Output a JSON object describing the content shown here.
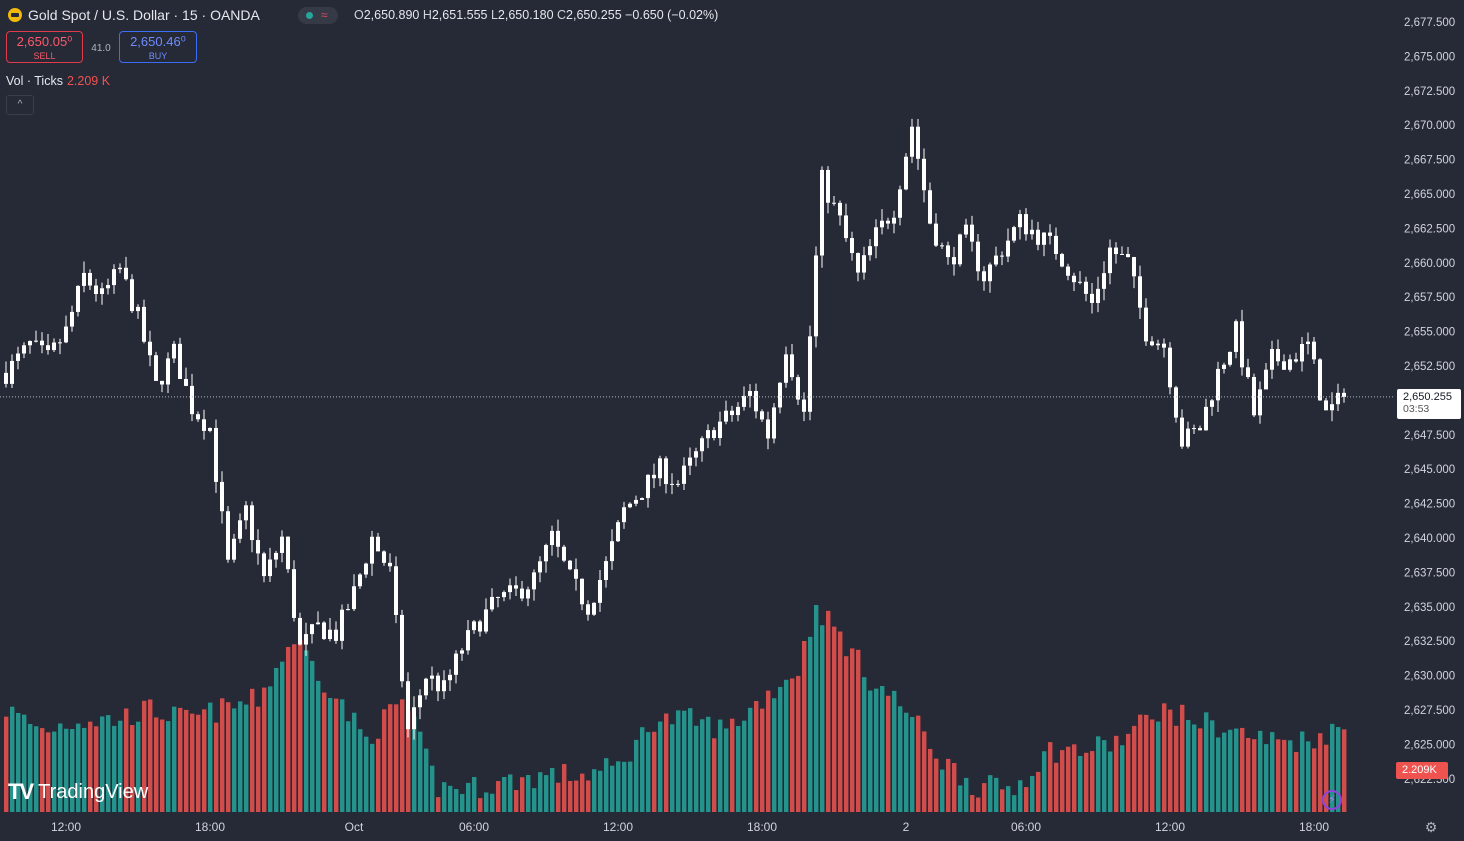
{
  "header": {
    "symbol_title": "Gold Spot / U.S. Dollar · 15 · OANDA",
    "status_wave": "≈",
    "ohlc": {
      "o_label": "O",
      "o": "2,650.890",
      "h_label": "H",
      "h": "2,651.555",
      "l_label": "L",
      "l": "2,650.180",
      "c_label": "C",
      "c": "2,650.255",
      "change": "−0.650 (−0.02%)"
    }
  },
  "trade": {
    "sell_price": "2,650.05⁰",
    "sell_label": "SELL",
    "spread": "41.0",
    "buy_price": "2,650.46⁰",
    "buy_label": "BUY"
  },
  "volume_legend": {
    "label": "Vol · Ticks",
    "value": "2.209 K"
  },
  "collapse_glyph": "^",
  "current": {
    "price": "2,650.255",
    "countdown": "03:53",
    "volume": "2.209K"
  },
  "brand": {
    "mark": "TV",
    "name": "TradingView"
  },
  "colors": {
    "background": "#262936",
    "candle": "#ffffff",
    "vol_up": "#26a69a",
    "vol_down": "#ef5350",
    "axis_text": "#d1d4dc"
  },
  "chart_data": {
    "type": "candlestick",
    "y_axis": {
      "ticks": [
        "2,677.500",
        "2,675.000",
        "2,672.500",
        "2,670.000",
        "2,667.500",
        "2,665.000",
        "2,662.500",
        "2,660.000",
        "2,657.500",
        "2,655.000",
        "2,652.500",
        "2,650.000",
        "2,647.500",
        "2,645.000",
        "2,642.500",
        "2,640.000",
        "2,637.500",
        "2,635.000",
        "2,632.500",
        "2,630.000",
        "2,627.500",
        "2,625.000",
        "2,622.500"
      ],
      "ylim": [
        2621,
        2679
      ]
    },
    "x_axis": {
      "ticks": [
        "12:00",
        "18:00",
        "Oct",
        "06:00",
        "12:00",
        "18:00",
        "2",
        "06:00",
        "12:00",
        "18:00"
      ]
    },
    "price_anchors": [
      [
        0,
        2652
      ],
      [
        4,
        2654
      ],
      [
        7,
        2653
      ],
      [
        10,
        2655
      ],
      [
        13,
        2659
      ],
      [
        16,
        2657.5
      ],
      [
        19,
        2659.5
      ],
      [
        22,
        2656
      ],
      [
        25,
        2651
      ],
      [
        28,
        2653.5
      ],
      [
        31,
        2649.5
      ],
      [
        34,
        2648
      ],
      [
        37,
        2638
      ],
      [
        40,
        2642
      ],
      [
        43,
        2637
      ],
      [
        46,
        2640
      ],
      [
        49,
        2632
      ],
      [
        52,
        2633.5
      ],
      [
        55,
        2633
      ],
      [
        58,
        2636
      ],
      [
        61,
        2640
      ],
      [
        64,
        2637.5
      ],
      [
        67,
        2626
      ],
      [
        70,
        2630
      ],
      [
        73,
        2629
      ],
      [
        76,
        2632
      ],
      [
        79,
        2634
      ],
      [
        82,
        2635.5
      ],
      [
        85,
        2636
      ],
      [
        88,
        2637
      ],
      [
        91,
        2640
      ],
      [
        94,
        2637
      ],
      [
        97,
        2635
      ],
      [
        100,
        2638
      ],
      [
        103,
        2642
      ],
      [
        106,
        2643.5
      ],
      [
        109,
        2645
      ],
      [
        112,
        2644
      ],
      [
        115,
        2646
      ],
      [
        118,
        2648
      ],
      [
        121,
        2649
      ],
      [
        124,
        2650.5
      ],
      [
        127,
        2647.5
      ],
      [
        130,
        2654
      ],
      [
        133,
        2649
      ],
      [
        136,
        2666
      ],
      [
        139,
        2663
      ],
      [
        142,
        2659
      ],
      [
        145,
        2662
      ],
      [
        148,
        2664
      ],
      [
        151,
        2670
      ],
      [
        154,
        2663
      ],
      [
        157,
        2660
      ],
      [
        160,
        2662
      ],
      [
        163,
        2659
      ],
      [
        166,
        2661
      ],
      [
        169,
        2663
      ],
      [
        172,
        2662
      ],
      [
        175,
        2661
      ],
      [
        178,
        2659
      ],
      [
        181,
        2657
      ],
      [
        184,
        2661
      ],
      [
        187,
        2660
      ],
      [
        190,
        2655
      ],
      [
        193,
        2654
      ],
      [
        196,
        2647
      ],
      [
        199,
        2648
      ],
      [
        202,
        2652
      ],
      [
        205,
        2655
      ],
      [
        208,
        2649
      ],
      [
        211,
        2653
      ],
      [
        214,
        2653
      ],
      [
        217,
        2654
      ],
      [
        220,
        2649
      ],
      [
        223,
        2650.255
      ]
    ],
    "volume_anchors": [
      [
        0,
        0.5
      ],
      [
        6,
        0.4
      ],
      [
        12,
        0.45
      ],
      [
        18,
        0.45
      ],
      [
        24,
        0.5
      ],
      [
        30,
        0.45
      ],
      [
        36,
        0.5
      ],
      [
        42,
        0.55
      ],
      [
        48,
        0.85
      ],
      [
        54,
        0.6
      ],
      [
        60,
        0.35
      ],
      [
        66,
        0.55
      ],
      [
        72,
        0.12
      ],
      [
        78,
        0.12
      ],
      [
        84,
        0.15
      ],
      [
        90,
        0.18
      ],
      [
        96,
        0.18
      ],
      [
        102,
        0.22
      ],
      [
        108,
        0.45
      ],
      [
        114,
        0.45
      ],
      [
        120,
        0.4
      ],
      [
        126,
        0.55
      ],
      [
        132,
        0.7
      ],
      [
        135,
        1.0
      ],
      [
        138,
        0.9
      ],
      [
        144,
        0.65
      ],
      [
        150,
        0.5
      ],
      [
        156,
        0.25
      ],
      [
        162,
        0.12
      ],
      [
        168,
        0.12
      ],
      [
        174,
        0.3
      ],
      [
        180,
        0.3
      ],
      [
        186,
        0.35
      ],
      [
        192,
        0.5
      ],
      [
        198,
        0.45
      ],
      [
        204,
        0.4
      ],
      [
        210,
        0.35
      ],
      [
        216,
        0.35
      ],
      [
        222,
        0.4
      ]
    ],
    "volume_max_label": "2.209 K"
  }
}
